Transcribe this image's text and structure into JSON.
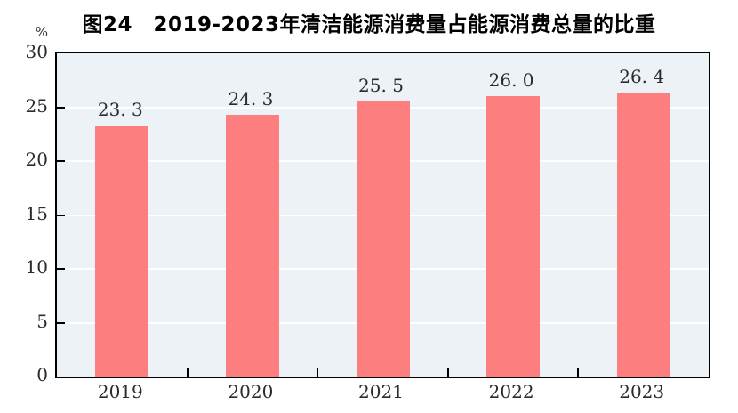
{
  "figure": {
    "title": "图24　2019-2023年清洁能源消费量占能源消费总量的比重",
    "unit_label": "%"
  },
  "chart_data": {
    "type": "bar",
    "title": "图24　2019-2023年清洁能源消费量占能源消费总量的比重",
    "categories": [
      "2019",
      "2020",
      "2021",
      "2022",
      "2023"
    ],
    "values": [
      23.3,
      24.3,
      25.5,
      26.0,
      26.4
    ],
    "value_labels": [
      "23. 3",
      "24. 3",
      "25. 5",
      "26. 0",
      "26. 4"
    ],
    "xlabel": "",
    "ylabel": "%",
    "ylim": [
      0,
      30
    ],
    "yticks": [
      0,
      5,
      10,
      15,
      20,
      25,
      30
    ],
    "gridline_values": [
      5,
      10,
      15,
      20,
      25
    ],
    "grid": true,
    "legend_position": "none",
    "colors": {
      "bar_fill": "#FC7E7E",
      "plot_background": "#EDF2F6",
      "gridline": "#FFFFFF",
      "axis": "#000000",
      "text": "#2B2B2B"
    }
  }
}
